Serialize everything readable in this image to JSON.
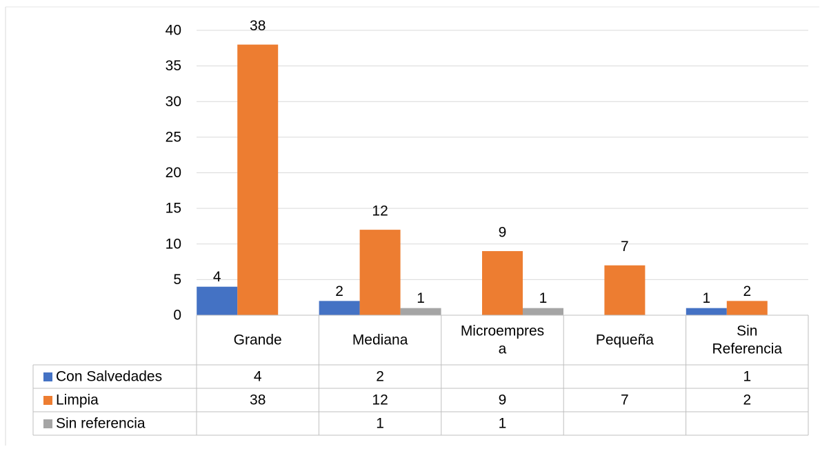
{
  "chart_data": {
    "type": "bar",
    "title": "",
    "xlabel": "",
    "ylabel": "",
    "ylim": [
      0,
      40
    ],
    "yticks": [
      "0",
      "5",
      "10",
      "15",
      "20",
      "25",
      "30",
      "35",
      "40"
    ],
    "grid": true,
    "legend": "data-table-left",
    "categories": [
      {
        "lines": [
          "Grande"
        ]
      },
      {
        "lines": [
          "Mediana"
        ]
      },
      {
        "lines": [
          "Microempres",
          "a"
        ]
      },
      {
        "lines": [
          "Pequeña"
        ]
      },
      {
        "lines": [
          "Sin",
          "Referencia"
        ]
      }
    ],
    "series": [
      {
        "name": "Con Salvedades",
        "color": "#4472C4",
        "values": [
          4,
          2,
          null,
          null,
          1
        ],
        "labels": [
          "4",
          "2",
          "",
          "",
          "1"
        ],
        "table": [
          "4",
          "2",
          "",
          "",
          "1"
        ]
      },
      {
        "name": "Limpia",
        "color": "#ED7D31",
        "values": [
          38,
          12,
          9,
          7,
          2
        ],
        "labels": [
          "38",
          "12",
          "9",
          "7",
          "2"
        ],
        "table": [
          "38",
          "12",
          "9",
          "7",
          "2"
        ]
      },
      {
        "name": "Sin referencia",
        "color": "#A5A5A5",
        "values": [
          null,
          1,
          1,
          null,
          null
        ],
        "labels": [
          "",
          "1",
          "1",
          "",
          ""
        ],
        "table": [
          "",
          "1",
          "1",
          "",
          ""
        ]
      }
    ]
  }
}
